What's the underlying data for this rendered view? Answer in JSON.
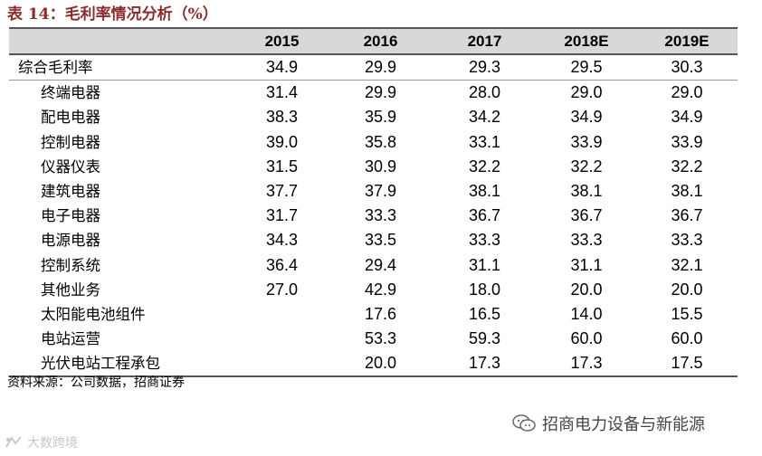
{
  "title": "表 14：毛利率情况分析（%）",
  "table": {
    "columns": [
      "",
      "2015",
      "2016",
      "2017",
      "2018E",
      "2019E"
    ],
    "rows": [
      {
        "label": "综合毛利率",
        "values": [
          "34.9",
          "29.9",
          "29.3",
          "29.5",
          "30.3"
        ],
        "level": "top"
      },
      {
        "label": "终端电器",
        "values": [
          "31.4",
          "29.9",
          "28.0",
          "29.0",
          "29.0"
        ],
        "level": "sub"
      },
      {
        "label": "配电电器",
        "values": [
          "38.3",
          "35.9",
          "34.2",
          "34.9",
          "34.9"
        ],
        "level": "sub"
      },
      {
        "label": "控制电器",
        "values": [
          "39.0",
          "35.8",
          "33.1",
          "33.9",
          "33.9"
        ],
        "level": "sub"
      },
      {
        "label": "仪器仪表",
        "values": [
          "31.5",
          "30.9",
          "32.2",
          "32.2",
          "32.2"
        ],
        "level": "sub"
      },
      {
        "label": "建筑电器",
        "values": [
          "37.7",
          "37.9",
          "38.1",
          "38.1",
          "38.1"
        ],
        "level": "sub"
      },
      {
        "label": "电子电器",
        "values": [
          "31.7",
          "33.3",
          "36.7",
          "36.7",
          "36.7"
        ],
        "level": "sub"
      },
      {
        "label": "电源电器",
        "values": [
          "34.3",
          "33.5",
          "33.3",
          "33.3",
          "33.3"
        ],
        "level": "sub"
      },
      {
        "label": "控制系统",
        "values": [
          "36.4",
          "29.4",
          "31.1",
          "31.1",
          "32.1"
        ],
        "level": "sub"
      },
      {
        "label": "其他业务",
        "values": [
          "27.0",
          "42.9",
          "18.0",
          "20.0",
          "20.0"
        ],
        "level": "sub"
      },
      {
        "label": "太阳能电池组件",
        "values": [
          "",
          "17.6",
          "16.5",
          "14.0",
          "15.5"
        ],
        "level": "sub"
      },
      {
        "label": "电站运营",
        "values": [
          "",
          "53.3",
          "59.3",
          "60.0",
          "60.0"
        ],
        "level": "sub"
      },
      {
        "label": "光伏电站工程承包",
        "values": [
          "",
          "20.0",
          "17.3",
          "17.3",
          "17.5"
        ],
        "level": "sub"
      }
    ]
  },
  "source": "资料来源：公司数据，招商证券",
  "watermark_right": "招商电力设备与新能源",
  "watermark_left": "大数跨境",
  "colors": {
    "title": "#8b2c2c",
    "header_bg": "#d8d8d8"
  }
}
